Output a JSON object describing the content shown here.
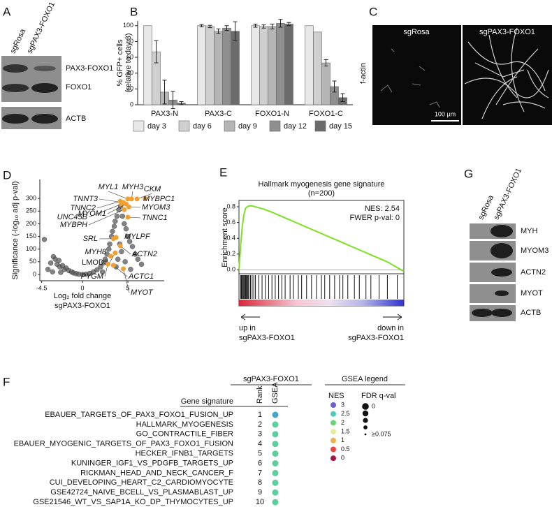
{
  "panel_labels": [
    "A",
    "B",
    "C",
    "D",
    "E",
    "F",
    "G"
  ],
  "panel_a": {
    "columns": [
      "sgRosa",
      "sgPAX3-FOXO1"
    ],
    "bands": [
      "PAX3-FOXO1",
      "FOXO1",
      "ACTB"
    ]
  },
  "panel_c": {
    "columns": [
      "sgRosa",
      "sgPAX3-FOXO1"
    ],
    "stain": "f-actin",
    "scale_bar": "100 µm"
  },
  "chart_data": [
    {
      "type": "bar",
      "y_label": [
        "% GFP+ cells",
        "(relative to day 3)"
      ],
      "categories": [
        "PAX3-N",
        "PAX3-C",
        "FOXO1-N",
        "FOXO1-C"
      ],
      "series": [
        {
          "name": "day 3",
          "color": "#e8e8e8",
          "values": [
            100,
            100,
            100,
            100
          ],
          "errors": [
            null,
            1.5,
            2,
            null
          ]
        },
        {
          "name": "day 6",
          "color": "#cfcfcf",
          "values": [
            67,
            99,
            99,
            92
          ],
          "errors": [
            14,
            1.5,
            2,
            null
          ]
        },
        {
          "name": "day 9",
          "color": "#b5b5b5",
          "values": [
            16,
            93,
            99,
            53
          ],
          "errors": [
            15,
            3,
            3,
            4
          ]
        },
        {
          "name": "day 12",
          "color": "#8f8f8f",
          "values": [
            6,
            97,
            103,
            23
          ],
          "errors": [
            11,
            3,
            5,
            7
          ]
        },
        {
          "name": "day 15",
          "color": "#6b6b6b",
          "values": [
            2,
            93,
            102,
            9
          ],
          "errors": [
            2,
            12,
            2,
            5
          ]
        }
      ],
      "ylim": [
        0,
        106
      ],
      "yticks": [
        0,
        20,
        40,
        60,
        80,
        100
      ]
    },
    {
      "type": "scatter",
      "x_label": "Log₂ fold change",
      "subtitle": "sgPAX3-FOXO1",
      "y_label": "Significance (-log₁₀ adj p-val)",
      "xlim": [
        -4.7,
        9
      ],
      "ylim": [
        -25,
        375
      ],
      "xticks": [
        -4.5,
        0,
        5
      ],
      "yticks": [
        0,
        50,
        100,
        150,
        200,
        250,
        300
      ],
      "points": {
        "color": "#5a5a5a",
        "x": [
          -4.2,
          -3.5,
          -3.2,
          -3.0,
          -2.8,
          -2.6,
          -2.5,
          -2.2,
          -2.0,
          -1.8,
          -1.5,
          -1.2,
          -1.0,
          -0.7,
          -0.4,
          0,
          0.4,
          0.8,
          1.2,
          1.6,
          2.0,
          2.3,
          2.5,
          2.7,
          2.9,
          3.0,
          3.2,
          3.3,
          3.5,
          3.6,
          3.8,
          4.0,
          4.2,
          4.4,
          4.6,
          4.8,
          5.0,
          5.2,
          5.5,
          5.8,
          6.1,
          6.5,
          3.9,
          4.3,
          4.1,
          3.7,
          4.7,
          5.3,
          2.2,
          -3.8,
          -3.3,
          -2.4
        ],
        "y": [
          138,
          45,
          70,
          60,
          40,
          55,
          30,
          35,
          20,
          25,
          15,
          10,
          6,
          3,
          1,
          0,
          1,
          4,
          10,
          18,
          30,
          45,
          60,
          80,
          100,
          120,
          150,
          170,
          190,
          210,
          230,
          255,
          270,
          230,
          200,
          180,
          150,
          130,
          110,
          80,
          60,
          40,
          60,
          90,
          120,
          30,
          50,
          20,
          10,
          20,
          10,
          8
        ]
      },
      "highlight": {
        "color": "#f0a030",
        "labels": [
          "CKM",
          "MYH3",
          "MYL1",
          "MYBPC1",
          "TNNT3",
          "TNNC2",
          "UNC45B",
          "MYOM3",
          "MYOM1",
          "MYBPH",
          "TNNC1",
          "SRL",
          "MYLPF",
          "ACTN2",
          "MYH8",
          "LMOD3",
          "PYGM",
          "ACTC1",
          "MYOT"
        ],
        "x": [
          6.0,
          5.4,
          5.0,
          6.9,
          4.5,
          4.15,
          4.3,
          5.1,
          4.8,
          4.6,
          5.0,
          3.4,
          3.7,
          4.15,
          3.1,
          3.6,
          2.8,
          3.4,
          4.5
        ],
        "y": [
          298,
          298,
          298,
          300,
          284,
          289,
          278,
          267,
          278,
          256,
          226,
          141,
          146,
          113,
          72,
          85,
          41,
          36,
          22
        ]
      }
    },
    {
      "type": "line",
      "title": [
        "Hallmark myogenesis gene signature",
        "(n=200)"
      ],
      "y_label": "Enrichment score",
      "annotations": [
        "NES: 2.54",
        "FWER p-val: 0"
      ],
      "left_label": [
        "up in",
        "sgPAX3-FOXO1"
      ],
      "right_label": [
        "down in",
        "sgPAX3-FOXO1"
      ],
      "color": "#7ee021",
      "xlim": [
        0,
        1
      ],
      "ylim": [
        -0.05,
        0.88
      ],
      "yticks": [
        {
          "value": 0,
          "label": "0.0"
        },
        0.2,
        0.4,
        0.6,
        0.8
      ],
      "x": [
        0,
        0.01,
        0.02,
        0.03,
        0.04,
        0.05,
        0.06,
        0.08,
        0.1,
        0.15,
        0.2,
        0.3,
        0.4,
        0.5,
        0.6,
        0.7,
        0.8,
        0.9,
        0.95,
        1.0
      ],
      "values": [
        0,
        0.3,
        0.55,
        0.7,
        0.78,
        0.8,
        0.81,
        0.81,
        0.8,
        0.77,
        0.73,
        0.64,
        0.55,
        0.46,
        0.37,
        0.28,
        0.19,
        0.1,
        0.04,
        -0.02
      ],
      "hits": [
        0.01,
        0.015,
        0.02,
        0.025,
        0.03,
        0.035,
        0.04,
        0.045,
        0.05,
        0.055,
        0.06,
        0.07,
        0.08,
        0.09,
        0.1,
        0.12,
        0.14,
        0.16,
        0.18,
        0.2,
        0.22,
        0.24,
        0.26,
        0.28,
        0.31,
        0.33,
        0.36,
        0.38,
        0.41,
        0.44,
        0.47,
        0.5,
        0.52,
        0.55,
        0.58,
        0.61,
        0.63,
        0.66,
        0.7,
        0.73,
        0.77,
        0.8,
        0.85,
        0.9,
        0.96
      ]
    }
  ],
  "panel_f": {
    "group_header": "sgPAX3-FOXO1",
    "columns": [
      "Gene signature",
      "Rank",
      "GSEA"
    ],
    "rows": [
      {
        "name": "EBAUER_TARGETS_OF_PAX3_FOXO1_FUSION_UP",
        "rank": 1,
        "color": "#42a6cc"
      },
      {
        "name": "HALLMARK_MYOGENESIS",
        "rank": 2,
        "color": "#5ccf9c"
      },
      {
        "name": "GO_CONTRACTILE_FIBER",
        "rank": 3,
        "color": "#5ccf9c"
      },
      {
        "name": "EBAUER_MYOGENIC_TARGETS_OF_PAX3_FOXO1_FUSION",
        "rank": 4,
        "color": "#5ccf9c"
      },
      {
        "name": "HECKER_IFNB1_TARGETS",
        "rank": 5,
        "color": "#5ccf9c"
      },
      {
        "name": "KUNINGER_IGF1_VS_PDGFB_TARGETS_UP",
        "rank": 6,
        "color": "#5ccf9c"
      },
      {
        "name": "RICKMAN_HEAD_AND_NECK_CANCER_F",
        "rank": 7,
        "color": "#5ccf9c"
      },
      {
        "name": "CUI_DEVELOPING_HEART_C2_CARDIOMYOCYTE",
        "rank": 8,
        "color": "#5ccf9c"
      },
      {
        "name": "GSE42724_NAIVE_BCELL_VS_PLASMABLAST_UP",
        "rank": 9,
        "color": "#5ccf9c"
      },
      {
        "name": "GSE21546_WT_VS_SAP1A_KO_DP_THYMOCYTES_UP",
        "rank": 10,
        "color": "#5ccf9c"
      }
    ],
    "legend": {
      "title": "GSEA legend",
      "nes_title": "NES",
      "nes_values": [
        3,
        2.5,
        2,
        1.5,
        1,
        0.5,
        0
      ],
      "nes_colors": [
        "#6b5fd3",
        "#52c8b8",
        "#6fd17a",
        "#eaea9a",
        "#f2b04a",
        "#e8473f",
        "#a3154a"
      ],
      "fdr_title": "FDR q-val",
      "fdr_labels": [
        "0",
        null,
        null,
        null,
        "≥0.075"
      ]
    }
  },
  "panel_g": {
    "columns": [
      "sgRosa",
      "sgPAX3-FOXO1"
    ],
    "bands": [
      "MYH",
      "MYOM3",
      "ACTN2",
      "MYOT",
      "ACTB"
    ]
  }
}
